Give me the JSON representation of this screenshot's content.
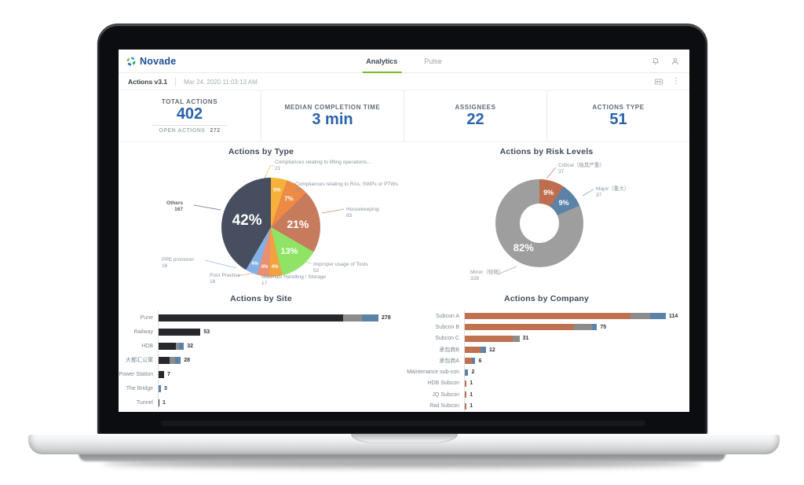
{
  "header": {
    "brand": "Novade",
    "tabs": [
      {
        "label": "Analytics",
        "active": true
      },
      {
        "label": "Pulse",
        "active": false
      }
    ],
    "icons": [
      "bell-icon",
      "user-icon"
    ]
  },
  "toolbar": {
    "title": "Actions v3.1",
    "timestamp": "Mar 24, 2020 11:03:13 AM",
    "icons": [
      "display-icon",
      "kebab-menu-icon"
    ],
    "kebab_glyph": "⋮"
  },
  "kpis": [
    {
      "label": "TOTAL ACTIONS",
      "value": "402",
      "sub_label": "OPEN ACTIONS",
      "sub_value": "272"
    },
    {
      "label": "MEDIAN COMPLETION TIME",
      "value": "3 min"
    },
    {
      "label": "ASSIGNEES",
      "value": "22"
    },
    {
      "label": "ACTIONS TYPE",
      "value": "51"
    }
  ],
  "colors": {
    "accent_green": "#76b82a",
    "kpi_blue": "#2a63ac",
    "brand_blue": "#1d4f91"
  },
  "chart_data": [
    {
      "type": "pie",
      "title": "Actions by Type",
      "total": 402,
      "slices": [
        {
          "label": "Compliances relating to lifting operations...",
          "value": 21,
          "pct": "5%",
          "color": "#f6b13b"
        },
        {
          "label": "Compliances relating to RAs, SWPs or PTWs",
          "value": 30,
          "pct": "7%",
          "color": "#ed8a44"
        },
        {
          "label": "Housekeeping",
          "value": 83,
          "pct": "21%",
          "color": "#c67c5c"
        },
        {
          "label": "Improper usage of Tools",
          "value": 52,
          "pct": "13%",
          "color": "#90e465"
        },
        {
          "label": "Materials Handling / Storage",
          "value": 17,
          "pct": "4%",
          "color": "#f2a340"
        },
        {
          "label": "Poor Practise",
          "value": 16,
          "pct": "4%",
          "color": "#ea9070"
        },
        {
          "label": "PPE provision",
          "value": 16,
          "pct": "4%",
          "color": "#85b0e3"
        },
        {
          "label": "Others",
          "value": 167,
          "pct": "42%",
          "color": "#474e60"
        }
      ]
    },
    {
      "type": "donut",
      "title": "Actions by Risk Levels",
      "total": 402,
      "slices": [
        {
          "label": "Critical（极其严重）",
          "value": 37,
          "pct": "9%",
          "color": "#bd6e4f"
        },
        {
          "label": "Major（重大）",
          "value": 37,
          "pct": "9%",
          "color": "#5c82a8"
        },
        {
          "label": "Minor（轻微）",
          "value": 328,
          "pct": "82%",
          "color": "#9e9e9e"
        }
      ]
    },
    {
      "type": "bar",
      "title": "Actions by Site",
      "max": 278,
      "segment_colors": [
        "#26282b",
        "#8c8c8c",
        "#5c82a8"
      ],
      "rows": [
        {
          "label": "Pune",
          "total": 278,
          "segments": [
            233,
            24,
            21
          ]
        },
        {
          "label": "Railway",
          "total": 53,
          "segments": [
            53,
            0,
            0
          ]
        },
        {
          "label": "HDB",
          "total": 32,
          "segments": [
            22,
            4,
            6
          ]
        },
        {
          "label": "大都汇公寓",
          "total": 28,
          "segments": [
            14,
            7,
            7
          ]
        },
        {
          "label": "Power Station",
          "total": 7,
          "segments": [
            7,
            0,
            0
          ]
        },
        {
          "label": "The Bridge",
          "total": 3,
          "segments": [
            0,
            0,
            3
          ]
        },
        {
          "label": "Tunnel",
          "total": 1,
          "segments": [
            1,
            0,
            0
          ]
        }
      ]
    },
    {
      "type": "bar",
      "title": "Actions by Company",
      "max": 114,
      "segment_colors": [
        "#c0714f",
        "#8c8c8c",
        "#5c82a8"
      ],
      "rows": [
        {
          "label": "Subcon A",
          "total": 114,
          "segments": [
            94,
            11,
            9
          ]
        },
        {
          "label": "Subcon B",
          "total": 75,
          "segments": [
            62,
            10,
            3
          ]
        },
        {
          "label": "Subcon C",
          "total": 31,
          "segments": [
            27,
            4,
            0
          ]
        },
        {
          "label": "承包商B",
          "total": 12,
          "segments": [
            9,
            0,
            3
          ]
        },
        {
          "label": "承包商A",
          "total": 6,
          "segments": [
            4,
            0,
            2
          ]
        },
        {
          "label": "Maintenance sub-con",
          "total": 2,
          "segments": [
            0,
            0,
            2
          ]
        },
        {
          "label": "HDB Subcon",
          "total": 1,
          "segments": [
            1,
            0,
            0
          ]
        },
        {
          "label": "JQ Subcon",
          "total": 1,
          "segments": [
            1,
            0,
            0
          ]
        },
        {
          "label": "Rail Subcon",
          "total": 1,
          "segments": [
            1,
            0,
            0
          ]
        }
      ]
    }
  ]
}
